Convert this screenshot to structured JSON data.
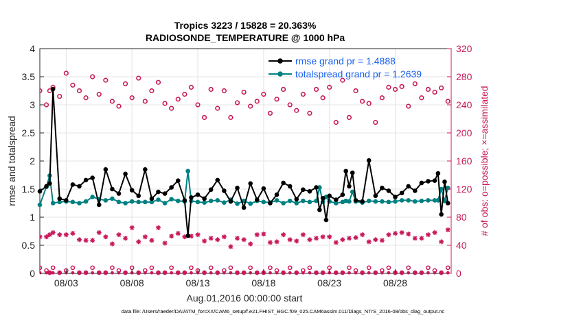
{
  "chart_data": {
    "type": "line",
    "title": "Tropics 3223 / 15828 = 20.363%",
    "subtitle": "RADIOSONDE_TEMPERATURE @ 1000 hPa",
    "xlabel": "Aug.01,2016 00:00:00 start",
    "ylabel_left": "rmse and totalspread",
    "ylabel_right": "# of obs: o=possible; ×=assimilated",
    "xlim": [
      1,
      32.25
    ],
    "ylim_left": [
      0,
      4
    ],
    "ylim_right": [
      0,
      320
    ],
    "x_ticks": [
      3,
      8,
      13,
      18,
      23,
      28
    ],
    "x_tick_labels": [
      "08/03",
      "08/08",
      "08/13",
      "08/18",
      "08/23",
      "08/28"
    ],
    "y_ticks_left": [
      "0",
      "0.5",
      "1",
      "1.5",
      "2",
      "2.5",
      "3",
      "3.5",
      "4"
    ],
    "y_ticks_right": [
      "0",
      "40",
      "80",
      "120",
      "160",
      "200",
      "240",
      "280",
      "320"
    ],
    "footnote": "data file: /Users/raeder/DAI/ATM_forcXX/CAM6_setup/f.e21.FHIST_BGC.f09_025.CAM6assim.011/Diags_NTrS_2016-08/obs_diag_output.nc",
    "colors": {
      "rmse": "#000000",
      "spread": "#008080",
      "obs": "#c8185a",
      "legend_text": "#1560f0",
      "grid": "#e4e4e4"
    },
    "series": [
      {
        "name": "rmse grand pr = 1.4888",
        "axis": "left",
        "x": [
          1.0,
          1.5,
          1.75,
          2.0,
          2.5,
          3.0,
          3.5,
          4.0,
          4.5,
          5.0,
          5.5,
          6.0,
          6.5,
          7.0,
          7.5,
          8.0,
          8.5,
          9.0,
          9.5,
          10.0,
          10.5,
          11.0,
          11.5,
          12.0,
          12.25,
          12.5,
          13.0,
          13.5,
          14.0,
          14.5,
          15.0,
          15.5,
          16.0,
          16.5,
          17.0,
          17.5,
          18.0,
          18.5,
          19.0,
          19.5,
          20.0,
          20.5,
          21.0,
          21.5,
          22.0,
          22.25,
          22.5,
          22.75,
          23.0,
          23.5,
          24.0,
          24.25,
          24.5,
          24.75,
          25.0,
          25.5,
          26.0,
          26.5,
          27.0,
          27.5,
          28.0,
          28.5,
          29.0,
          29.5,
          30.0,
          30.5,
          31.0,
          31.25,
          31.5,
          31.75,
          32.0
        ],
        "values": [
          1.46,
          1.55,
          1.6,
          3.28,
          1.33,
          1.3,
          1.58,
          1.55,
          1.66,
          1.7,
          1.22,
          1.85,
          1.5,
          1.42,
          1.77,
          1.48,
          1.38,
          1.85,
          1.33,
          1.45,
          1.42,
          1.53,
          1.65,
          1.3,
          0.67,
          1.35,
          1.4,
          1.33,
          1.49,
          1.66,
          1.47,
          1.28,
          1.52,
          1.17,
          1.6,
          1.31,
          1.51,
          1.25,
          1.4,
          1.61,
          1.55,
          1.32,
          1.49,
          1.46,
          1.53,
          1.13,
          1.34,
          0.95,
          1.38,
          1.31,
          1.4,
          1.82,
          1.55,
          1.79,
          1.3,
          1.28,
          2.01,
          1.38,
          1.52,
          1.47,
          1.36,
          1.43,
          1.55,
          1.47,
          1.61,
          1.64,
          1.65,
          1.78,
          1.05,
          1.63,
          1.25
        ]
      },
      {
        "name": "totalspread grand pr = 1.2639",
        "axis": "left",
        "x": [
          1.0,
          1.5,
          1.75,
          2.0,
          2.5,
          3.0,
          3.5,
          4.0,
          4.5,
          5.0,
          5.5,
          6.0,
          6.5,
          7.0,
          7.5,
          8.0,
          8.5,
          9.0,
          9.5,
          10.0,
          10.5,
          11.0,
          11.5,
          12.0,
          12.25,
          12.5,
          13.0,
          13.5,
          14.0,
          14.5,
          15.0,
          15.5,
          16.0,
          16.5,
          17.0,
          17.5,
          18.0,
          18.5,
          19.0,
          19.5,
          20.0,
          20.5,
          21.0,
          21.5,
          22.0,
          22.25,
          22.5,
          22.75,
          23.0,
          23.5,
          24.0,
          24.25,
          24.5,
          24.75,
          25.0,
          25.5,
          26.0,
          26.5,
          27.0,
          27.5,
          28.0,
          28.5,
          29.0,
          29.5,
          30.0,
          30.5,
          31.0,
          31.25,
          31.5,
          31.75,
          32.0
        ],
        "values": [
          1.22,
          1.54,
          1.74,
          1.25,
          1.27,
          1.28,
          1.27,
          1.25,
          1.28,
          1.36,
          1.32,
          1.3,
          1.33,
          1.27,
          1.25,
          1.28,
          1.27,
          1.27,
          1.27,
          1.31,
          1.25,
          1.32,
          1.29,
          1.28,
          1.82,
          1.29,
          1.27,
          1.26,
          1.29,
          1.3,
          1.26,
          1.31,
          1.24,
          1.29,
          1.24,
          1.29,
          1.27,
          1.26,
          1.3,
          1.25,
          1.29,
          1.25,
          1.29,
          1.27,
          1.29,
          1.53,
          1.27,
          1.36,
          1.28,
          1.25,
          1.27,
          1.29,
          1.28,
          1.45,
          1.28,
          1.26,
          1.29,
          1.28,
          1.28,
          1.27,
          1.28,
          1.3,
          1.3,
          1.28,
          1.29,
          1.3,
          1.3,
          1.3,
          1.5,
          1.29,
          1.52
        ]
      },
      {
        "name": "obs possible",
        "axis": "right",
        "marker": "o",
        "x": [
          1.0,
          1.5,
          1.75,
          2.0,
          2.5,
          3.0,
          3.5,
          4.0,
          4.5,
          5.0,
          5.5,
          6.0,
          6.5,
          7.0,
          7.5,
          8.0,
          8.5,
          9.0,
          9.5,
          10.0,
          10.5,
          11.0,
          11.5,
          12.0,
          12.5,
          13.0,
          13.5,
          14.0,
          14.5,
          15.0,
          15.5,
          16.0,
          16.5,
          17.0,
          17.5,
          18.0,
          18.5,
          19.0,
          19.5,
          20.0,
          20.5,
          21.0,
          21.5,
          22.0,
          22.5,
          23.0,
          23.5,
          24.0,
          24.5,
          25.0,
          25.5,
          26.0,
          26.5,
          27.0,
          27.5,
          28.0,
          28.5,
          29.0,
          29.5,
          30.0,
          30.5,
          31.0,
          31.5,
          32.0
        ],
        "values": [
          260,
          240,
          260,
          265,
          252,
          285,
          268,
          260,
          250,
          280,
          255,
          275,
          245,
          238,
          270,
          250,
          278,
          245,
          260,
          272,
          242,
          235,
          248,
          255,
          265,
          240,
          222,
          262,
          235,
          260,
          222,
          243,
          258,
          238,
          245,
          255,
          228,
          248,
          262,
          240,
          232,
          255,
          228,
          262,
          250,
          265,
          215,
          275,
          222,
          260,
          245,
          242,
          215,
          250,
          265,
          262,
          266,
          238,
          270,
          250,
          262,
          258,
          264,
          245
        ]
      },
      {
        "name": "obs assimilated",
        "axis": "right",
        "marker": "x",
        "x": [
          1.0,
          1.5,
          1.75,
          2.0,
          2.5,
          3.0,
          3.5,
          4.0,
          4.5,
          5.0,
          5.5,
          6.0,
          6.5,
          7.0,
          7.5,
          8.0,
          8.5,
          9.0,
          9.5,
          10.0,
          10.5,
          11.0,
          11.5,
          12.0,
          12.5,
          13.0,
          13.5,
          14.0,
          14.5,
          15.0,
          15.5,
          16.0,
          16.5,
          17.0,
          17.5,
          18.0,
          18.5,
          19.0,
          19.5,
          20.0,
          20.5,
          21.0,
          21.5,
          22.0,
          22.5,
          23.0,
          23.5,
          24.0,
          24.5,
          25.0,
          25.5,
          26.0,
          26.5,
          27.0,
          27.5,
          28.0,
          28.5,
          29.0,
          29.5,
          30.0,
          30.5,
          31.0,
          31.5,
          32.0
        ],
        "values": [
          52,
          52,
          55,
          58,
          55,
          55,
          57,
          48,
          47,
          47,
          58,
          52,
          42,
          55,
          50,
          65,
          45,
          52,
          47,
          65,
          43,
          53,
          57,
          52,
          53,
          55,
          46,
          50,
          48,
          52,
          38,
          50,
          48,
          42,
          55,
          56,
          44,
          45,
          55,
          48,
          46,
          55,
          48,
          50,
          52,
          52,
          44,
          48,
          50,
          51,
          55,
          45,
          48,
          47,
          55,
          57,
          58,
          56,
          50,
          50,
          55,
          58,
          45,
          62
        ]
      }
    ]
  }
}
